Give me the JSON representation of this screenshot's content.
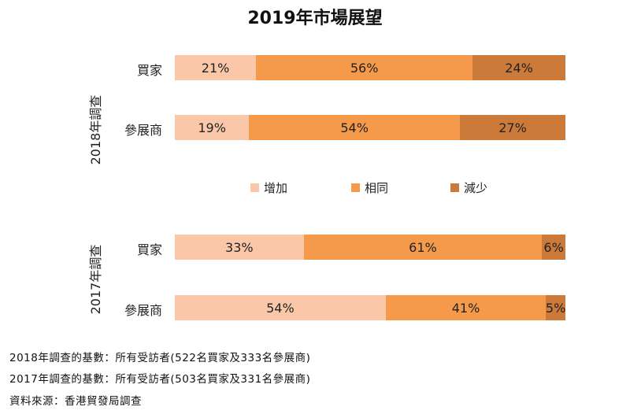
{
  "chart_data": {
    "type": "bar",
    "orientation": "horizontal-stacked-100",
    "title": "2019年市場展望",
    "legend": [
      "增加",
      "相同",
      "減少"
    ],
    "colors": [
      "#fac8a8",
      "#f5994a",
      "#cb7a3a"
    ],
    "groups": [
      {
        "label": "2018年調查",
        "rows": [
          {
            "label": "買家",
            "values": [
              21,
              56,
              24
            ],
            "value_labels": [
              "21%",
              "56%",
              "24%"
            ]
          },
          {
            "label": "參展商",
            "values": [
              19,
              54,
              27
            ],
            "value_labels": [
              "19%",
              "54%",
              "27%"
            ]
          }
        ]
      },
      {
        "label": "2017年調查",
        "rows": [
          {
            "label": "買家",
            "values": [
              33,
              61,
              6
            ],
            "value_labels": [
              "33%",
              "61%",
              "6%"
            ]
          },
          {
            "label": "參展商",
            "values": [
              54,
              41,
              5
            ],
            "value_labels": [
              "54%",
              "41%",
              "5%"
            ]
          }
        ]
      }
    ],
    "xlim": [
      0,
      100
    ],
    "grid": false,
    "legend_position": "middle"
  },
  "footnotes": [
    "2018年調查的基數：所有受訪者(522名買家及333名參展商)",
    "2017年調查的基數：所有受訪者(503名買家及331名參展商)",
    "資料來源：香港貿發局調查"
  ]
}
